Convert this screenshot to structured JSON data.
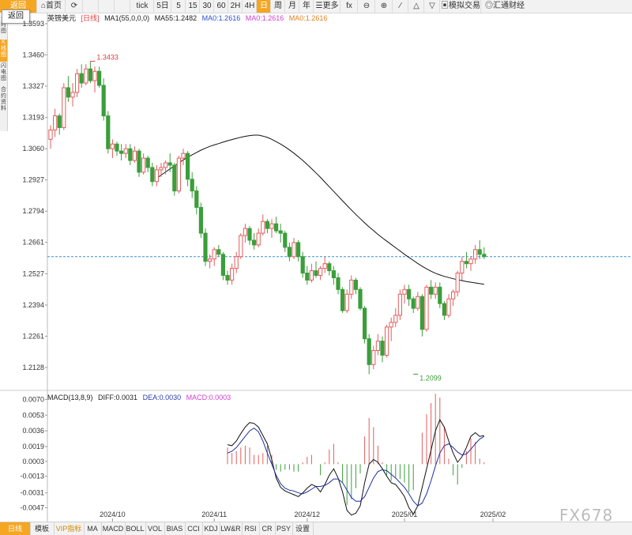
{
  "toolbar": {
    "back_label": "返回",
    "items": [
      {
        "label": "⌂首页",
        "w": 36,
        "active": false
      },
      {
        "label": "⟳",
        "w": 22,
        "active": false
      },
      {
        "label": "",
        "w": 20,
        "active": false
      },
      {
        "label": "",
        "w": 20,
        "active": false
      },
      {
        "label": "",
        "w": 20,
        "active": false
      },
      {
        "label": "tick",
        "w": 30,
        "active": false
      },
      {
        "label": "5日",
        "w": 22,
        "active": false
      },
      {
        "label": "5",
        "w": 18,
        "active": false
      },
      {
        "label": "15",
        "w": 18,
        "active": false
      },
      {
        "label": "30",
        "w": 18,
        "active": false
      },
      {
        "label": "60",
        "w": 18,
        "active": false
      },
      {
        "label": "2H",
        "w": 18,
        "active": false
      },
      {
        "label": "4H",
        "w": 18,
        "active": false
      },
      {
        "label": "日",
        "w": 18,
        "active": true
      },
      {
        "label": "周",
        "w": 18,
        "active": false
      },
      {
        "label": "月",
        "w": 18,
        "active": false
      },
      {
        "label": "年",
        "w": 18,
        "active": false
      },
      {
        "label": "☰更多",
        "w": 34,
        "active": false
      },
      {
        "label": "fx",
        "w": 22,
        "active": false
      },
      {
        "label": "⊖",
        "w": 22,
        "active": false
      },
      {
        "label": "⊕",
        "w": 22,
        "active": false
      },
      {
        "label": "⁄",
        "w": 20,
        "active": false
      },
      {
        "label": "△",
        "w": 20,
        "active": false
      },
      {
        "label": "▽",
        "w": 20,
        "active": false
      },
      {
        "label": "▣模拟交易",
        "w": 52,
        "active": false
      },
      {
        "label": "◎汇通财经",
        "w": 60,
        "active": false
      }
    ]
  },
  "tooltip": "返回",
  "left_tabs": [
    {
      "label": "分时图",
      "on": false
    },
    {
      "label": "K线图",
      "on": true
    },
    {
      "label": "闪电图",
      "on": false
    },
    {
      "label": "合约资料",
      "on": false
    }
  ],
  "legend": {
    "symbol": "英镑美元",
    "period": "[日线]",
    "ma_params": "MA1(55,0,0,0)",
    "ma55": "MA55:1.2482",
    "ma0a": "MA0:1.2616",
    "ma0b": "MA0:1.2616",
    "ma0c": "MA0:1.2616"
  },
  "macd_legend": {
    "params": "MACD(13,8,9)",
    "diff": "DIFF:0.0031",
    "dea": "DEA:0.0030",
    "macd": "MACD:0.0003"
  },
  "colors": {
    "up": "#e35d5d",
    "down": "#3b9e3b",
    "ma": "#111111",
    "dea": "#1f2fa8",
    "current": "#3a8fd6"
  },
  "bottom_tabs": [
    {
      "label": "日线",
      "w": 38,
      "style": "orange"
    },
    {
      "label": "模板",
      "w": 30,
      "style": ""
    },
    {
      "label": "VIP指标",
      "w": 38,
      "style": "vip"
    },
    {
      "label": "MA",
      "w": 22,
      "style": ""
    },
    {
      "label": "MACD",
      "w": 30,
      "style": ""
    },
    {
      "label": "BOLL",
      "w": 26,
      "style": ""
    },
    {
      "label": "VOL",
      "w": 24,
      "style": ""
    },
    {
      "label": "BIAS",
      "w": 26,
      "style": ""
    },
    {
      "label": "CCI",
      "w": 22,
      "style": ""
    },
    {
      "label": "KDJ",
      "w": 22,
      "style": ""
    },
    {
      "label": "LW&R",
      "w": 28,
      "style": ""
    },
    {
      "label": "RSI",
      "w": 22,
      "style": ""
    },
    {
      "label": "CR",
      "w": 20,
      "style": ""
    },
    {
      "label": "PSY",
      "w": 22,
      "style": ""
    },
    {
      "label": "设置",
      "w": 26,
      "style": ""
    }
  ],
  "watermark": "FX678",
  "chart_data": [
    {
      "type": "candlestick",
      "title": "英镑美元 [日线]",
      "ylim": [
        1.203,
        1.364
      ],
      "y_ticks": [
        "1.3593",
        "1.3460",
        "1.3327",
        "1.3193",
        "1.3060",
        "1.2927",
        "1.2794",
        "1.2661",
        "1.2527",
        "1.2394",
        "1.2261",
        "1.2128"
      ],
      "x_labels": [
        {
          "label": "2024/10",
          "index": 14
        },
        {
          "label": "2024/11",
          "index": 37
        },
        {
          "label": "2024/12",
          "index": 58
        },
        {
          "label": "2025/01",
          "index": 80
        },
        {
          "label": "2025/02",
          "index": 100
        }
      ],
      "annotations": [
        {
          "label": "1.3433",
          "index": 9,
          "value": 1.3433,
          "color": "#d94040"
        },
        {
          "label": "1.2099",
          "index": 82,
          "value": 1.2099,
          "color": "#3b9e3b"
        }
      ],
      "current_price": 1.26,
      "ohlc": [
        [
          1.31,
          1.316,
          1.306,
          1.314
        ],
        [
          1.314,
          1.323,
          1.311,
          1.32
        ],
        [
          1.32,
          1.321,
          1.312,
          1.315
        ],
        [
          1.315,
          1.334,
          1.314,
          1.332
        ],
        [
          1.332,
          1.337,
          1.326,
          1.328
        ],
        [
          1.328,
          1.334,
          1.324,
          1.33
        ],
        [
          1.33,
          1.34,
          1.328,
          1.338
        ],
        [
          1.338,
          1.342,
          1.332,
          1.334
        ],
        [
          1.334,
          1.342,
          1.333,
          1.34
        ],
        [
          1.34,
          1.3433,
          1.334,
          1.335
        ],
        [
          1.335,
          1.341,
          1.33,
          1.339
        ],
        [
          1.339,
          1.341,
          1.332,
          1.333
        ],
        [
          1.333,
          1.336,
          1.318,
          1.32
        ],
        [
          1.32,
          1.322,
          1.304,
          1.306
        ],
        [
          1.306,
          1.31,
          1.302,
          1.308
        ],
        [
          1.308,
          1.309,
          1.303,
          1.305
        ],
        [
          1.305,
          1.308,
          1.301,
          1.304
        ],
        [
          1.304,
          1.308,
          1.302,
          1.306
        ],
        [
          1.306,
          1.308,
          1.299,
          1.301
        ],
        [
          1.301,
          1.307,
          1.3,
          1.305
        ],
        [
          1.305,
          1.306,
          1.294,
          1.296
        ],
        [
          1.296,
          1.304,
          1.295,
          1.302
        ],
        [
          1.302,
          1.303,
          1.296,
          1.298
        ],
        [
          1.298,
          1.3,
          1.29,
          1.292
        ],
        [
          1.292,
          1.299,
          1.29,
          1.297
        ],
        [
          1.297,
          1.3,
          1.294,
          1.298
        ],
        [
          1.298,
          1.301,
          1.295,
          1.3
        ],
        [
          1.3,
          1.304,
          1.296,
          1.299
        ],
        [
          1.299,
          1.3,
          1.286,
          1.288
        ],
        [
          1.288,
          1.303,
          1.287,
          1.302
        ],
        [
          1.302,
          1.306,
          1.299,
          1.304
        ],
        [
          1.304,
          1.305,
          1.29,
          1.293
        ],
        [
          1.293,
          1.296,
          1.285,
          1.288
        ],
        [
          1.288,
          1.29,
          1.278,
          1.281
        ],
        [
          1.281,
          1.283,
          1.268,
          1.27
        ],
        [
          1.27,
          1.272,
          1.256,
          1.258
        ],
        [
          1.258,
          1.261,
          1.255,
          1.259
        ],
        [
          1.259,
          1.264,
          1.256,
          1.263
        ],
        [
          1.263,
          1.265,
          1.26,
          1.261
        ],
        [
          1.261,
          1.262,
          1.25,
          1.252
        ],
        [
          1.252,
          1.254,
          1.248,
          1.25
        ],
        [
          1.25,
          1.257,
          1.248,
          1.255
        ],
        [
          1.255,
          1.262,
          1.253,
          1.26
        ],
        [
          1.26,
          1.27,
          1.259,
          1.269
        ],
        [
          1.269,
          1.274,
          1.266,
          1.272
        ],
        [
          1.272,
          1.273,
          1.265,
          1.267
        ],
        [
          1.267,
          1.27,
          1.263,
          1.265
        ],
        [
          1.265,
          1.272,
          1.264,
          1.27
        ],
        [
          1.27,
          1.278,
          1.269,
          1.275
        ],
        [
          1.275,
          1.276,
          1.27,
          1.272
        ],
        [
          1.272,
          1.276,
          1.268,
          1.274
        ],
        [
          1.274,
          1.277,
          1.27,
          1.271
        ],
        [
          1.271,
          1.274,
          1.266,
          1.27
        ],
        [
          1.27,
          1.271,
          1.262,
          1.264
        ],
        [
          1.264,
          1.266,
          1.258,
          1.26
        ],
        [
          1.26,
          1.268,
          1.259,
          1.266
        ],
        [
          1.266,
          1.267,
          1.258,
          1.26
        ],
        [
          1.26,
          1.262,
          1.251,
          1.253
        ],
        [
          1.253,
          1.256,
          1.248,
          1.25
        ],
        [
          1.25,
          1.257,
          1.249,
          1.254
        ],
        [
          1.254,
          1.258,
          1.251,
          1.252
        ],
        [
          1.252,
          1.256,
          1.25,
          1.255
        ],
        [
          1.255,
          1.26,
          1.253,
          1.257
        ],
        [
          1.257,
          1.258,
          1.252,
          1.254
        ],
        [
          1.254,
          1.256,
          1.248,
          1.251
        ],
        [
          1.251,
          1.253,
          1.244,
          1.246
        ],
        [
          1.246,
          1.247,
          1.236,
          1.237
        ],
        [
          1.237,
          1.246,
          1.236,
          1.244
        ],
        [
          1.244,
          1.252,
          1.242,
          1.25
        ],
        [
          1.25,
          1.251,
          1.244,
          1.246
        ],
        [
          1.246,
          1.247,
          1.237,
          1.238
        ],
        [
          1.238,
          1.239,
          1.223,
          1.225
        ],
        [
          1.225,
          1.227,
          1.2099,
          1.214
        ],
        [
          1.214,
          1.222,
          1.212,
          1.22
        ],
        [
          1.22,
          1.227,
          1.218,
          1.224
        ],
        [
          1.224,
          1.226,
          1.215,
          1.218
        ],
        [
          1.218,
          1.231,
          1.217,
          1.23
        ],
        [
          1.23,
          1.234,
          1.224,
          1.232
        ],
        [
          1.232,
          1.238,
          1.23,
          1.235
        ],
        [
          1.235,
          1.246,
          1.233,
          1.244
        ],
        [
          1.244,
          1.248,
          1.24,
          1.246
        ],
        [
          1.246,
          1.248,
          1.239,
          1.242
        ],
        [
          1.242,
          1.243,
          1.236,
          1.238
        ],
        [
          1.238,
          1.245,
          1.237,
          1.243
        ],
        [
          1.243,
          1.244,
          1.226,
          1.229
        ],
        [
          1.229,
          1.248,
          1.228,
          1.247
        ],
        [
          1.247,
          1.25,
          1.242,
          1.244
        ],
        [
          1.244,
          1.249,
          1.242,
          1.247
        ],
        [
          1.247,
          1.249,
          1.238,
          1.24
        ],
        [
          1.24,
          1.241,
          1.233,
          1.235
        ],
        [
          1.235,
          1.244,
          1.234,
          1.242
        ],
        [
          1.242,
          1.246,
          1.239,
          1.245
        ],
        [
          1.245,
          1.254,
          1.243,
          1.253
        ],
        [
          1.253,
          1.26,
          1.25,
          1.258
        ],
        [
          1.258,
          1.262,
          1.255,
          1.257
        ],
        [
          1.257,
          1.26,
          1.254,
          1.259
        ],
        [
          1.259,
          1.265,
          1.257,
          1.263
        ],
        [
          1.263,
          1.267,
          1.259,
          1.261
        ],
        [
          1.261,
          1.264,
          1.259,
          1.26
        ]
      ],
      "ma55": [
        1.2935,
        1.2948,
        1.2961,
        1.2974,
        1.2987,
        1.3,
        1.3012,
        1.3024,
        1.3034,
        1.3044,
        1.3054,
        1.3062,
        1.307,
        1.3076,
        1.3082,
        1.3088,
        1.3094,
        1.3099,
        1.3104,
        1.3109,
        1.3113,
        1.3116,
        1.3118,
        1.3118,
        1.3114,
        1.3108,
        1.31,
        1.309,
        1.308,
        1.3068,
        1.3055,
        1.3041,
        1.3026,
        1.301,
        1.2993,
        1.2975,
        1.2957,
        1.2938,
        1.2918,
        1.2898,
        1.2878,
        1.2858,
        1.2838,
        1.2818,
        1.2799,
        1.278,
        1.2762,
        1.2744,
        1.2727,
        1.2711,
        1.2695,
        1.268,
        1.2666,
        1.2652,
        1.2638,
        1.2624,
        1.261,
        1.2597,
        1.2584,
        1.2571,
        1.2559,
        1.2548,
        1.2538,
        1.2529,
        1.2522,
        1.2516,
        1.2511,
        1.2506,
        1.2502,
        1.2498,
        1.2494,
        1.2491,
        1.2488,
        1.2485,
        1.2482
      ]
    },
    {
      "type": "macd",
      "title": "MACD(13,8,9)",
      "ylim": [
        -0.0062,
        0.0078
      ],
      "y_ticks": [
        "0.0070",
        "0.0053",
        "0.0036",
        "0.0019",
        "0.0003",
        "-0.0013",
        "-0.0031",
        "-0.0047"
      ],
      "diff": [
        0.0021,
        0.002,
        0.0025,
        0.0033,
        0.004,
        0.0045,
        0.0044,
        0.004,
        0.0031,
        0.0022,
        0.0005,
        -0.0015,
        -0.0025,
        -0.0029,
        -0.0031,
        -0.0033,
        -0.0035,
        -0.0031,
        -0.0026,
        -0.0022,
        -0.0024,
        -0.003,
        -0.0022,
        -0.0012,
        -0.0005,
        -0.0015,
        -0.003,
        -0.005,
        -0.0055,
        -0.0053,
        -0.0045,
        -0.002,
        0.0,
        0.0005,
        0.0002,
        -0.0005,
        -0.0013,
        -0.002,
        -0.0022,
        -0.0028,
        -0.0035,
        -0.0047,
        -0.0054,
        -0.0045,
        -0.0025,
        -0.0005,
        0.0015,
        0.0036,
        0.0048,
        0.004,
        0.0025,
        0.0012,
        0.0002,
        0.0008,
        0.0018,
        0.003,
        0.0034,
        0.003,
        0.0031
      ],
      "dea": [
        0.0012,
        0.0014,
        0.0018,
        0.0024,
        0.003,
        0.0036,
        0.0039,
        0.0035,
        0.0025,
        0.0012,
        0.0,
        -0.0012,
        -0.0021,
        -0.0026,
        -0.0028,
        -0.0029,
        -0.0031,
        -0.0032,
        -0.003,
        -0.0027,
        -0.0024,
        -0.0024,
        -0.0023,
        -0.002,
        -0.0016,
        -0.0016,
        -0.002,
        -0.0028,
        -0.0036,
        -0.004,
        -0.004,
        -0.0035,
        -0.0025,
        -0.0015,
        -0.0008,
        -0.0006,
        -0.0007,
        -0.0011,
        -0.0015,
        -0.002,
        -0.0025,
        -0.0032,
        -0.004,
        -0.0045,
        -0.0042,
        -0.0032,
        -0.0018,
        -0.0002,
        0.0012,
        0.002,
        0.0022,
        0.0018,
        0.0013,
        0.001,
        0.0011,
        0.0016,
        0.0022,
        0.0027,
        0.003
      ]
    }
  ]
}
